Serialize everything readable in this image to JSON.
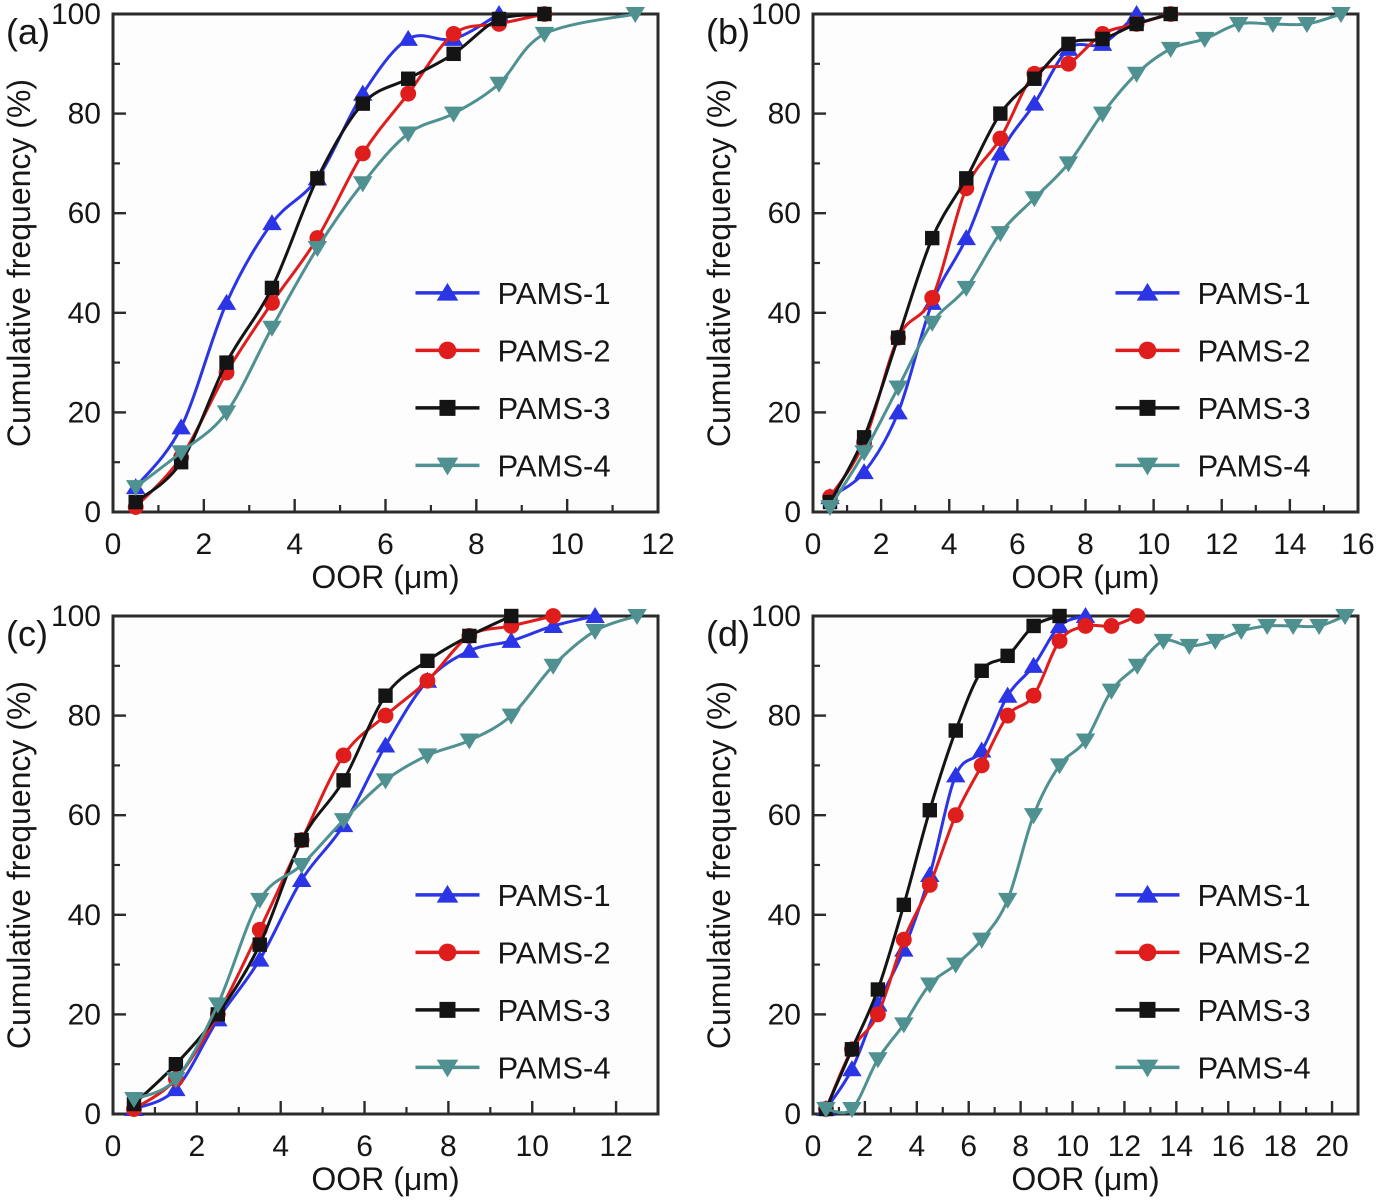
{
  "figure": {
    "kind": "4-panel cumulative distribution figure",
    "background": "#ffffff",
    "axis_color": "#2b2b2b",
    "text_color": "#161616"
  },
  "series_style": {
    "PAMS-1": {
      "color": "#2b35e6",
      "marker": "triangle-up"
    },
    "PAMS-2": {
      "color": "#e01d1d",
      "marker": "circle"
    },
    "PAMS-3": {
      "color": "#141414",
      "marker": "square"
    },
    "PAMS-4": {
      "color": "#4f9190",
      "marker": "triangle-down"
    }
  },
  "chart_data": [
    {
      "type": "line",
      "panel_label": "(a)",
      "xlabel": "OOR (μm)",
      "ylabel": "Cumulative frequency (%)",
      "xlim": [
        0,
        12
      ],
      "ylim": [
        0,
        100
      ],
      "xticks": [
        0,
        2,
        4,
        6,
        8,
        10,
        12
      ],
      "yticks": [
        0,
        20,
        40,
        60,
        80,
        100
      ],
      "grid": false,
      "legend_position": "inside-right-middle",
      "legend": [
        "PAMS-1",
        "PAMS-2",
        "PAMS-3",
        "PAMS-4"
      ],
      "series": [
        {
          "name": "PAMS-1",
          "color": "#2b35e6",
          "marker": "triangle-up",
          "points": [
            [
              0.5,
              5
            ],
            [
              1.5,
              17
            ],
            [
              2.5,
              42
            ],
            [
              3.5,
              58
            ],
            [
              4.5,
              67
            ],
            [
              5.5,
              84
            ],
            [
              6.5,
              95
            ],
            [
              7.5,
              95
            ],
            [
              8.5,
              100
            ]
          ]
        },
        {
          "name": "PAMS-2",
          "color": "#e01d1d",
          "marker": "circle",
          "points": [
            [
              0.5,
              1
            ],
            [
              1.5,
              11
            ],
            [
              2.5,
              28
            ],
            [
              3.5,
              42
            ],
            [
              4.5,
              55
            ],
            [
              5.5,
              72
            ],
            [
              6.5,
              84
            ],
            [
              7.5,
              96
            ],
            [
              8.5,
              98
            ],
            [
              9.5,
              100
            ]
          ]
        },
        {
          "name": "PAMS-3",
          "color": "#141414",
          "marker": "square",
          "points": [
            [
              0.5,
              2
            ],
            [
              1.5,
              10
            ],
            [
              2.5,
              30
            ],
            [
              3.5,
              45
            ],
            [
              4.5,
              67
            ],
            [
              5.5,
              82
            ],
            [
              6.5,
              87
            ],
            [
              7.5,
              92
            ],
            [
              8.5,
              99
            ],
            [
              9.5,
              100
            ]
          ]
        },
        {
          "name": "PAMS-4",
          "color": "#4f9190",
          "marker": "triangle-down",
          "points": [
            [
              0.5,
              5
            ],
            [
              1.5,
              12
            ],
            [
              2.5,
              20
            ],
            [
              3.5,
              37
            ],
            [
              4.5,
              53
            ],
            [
              5.5,
              66
            ],
            [
              6.5,
              76
            ],
            [
              7.5,
              80
            ],
            [
              8.5,
              86
            ],
            [
              9.5,
              96
            ],
            [
              11.5,
              100
            ]
          ]
        }
      ]
    },
    {
      "type": "line",
      "panel_label": "(b)",
      "xlabel": "OOR (μm)",
      "ylabel": "Cumulative frequency (%)",
      "xlim": [
        0,
        16
      ],
      "ylim": [
        0,
        100
      ],
      "xticks": [
        0,
        2,
        4,
        6,
        8,
        10,
        12,
        14,
        16
      ],
      "yticks": [
        0,
        20,
        40,
        60,
        80,
        100
      ],
      "grid": false,
      "legend_position": "inside-right-middle",
      "legend": [
        "PAMS-1",
        "PAMS-2",
        "PAMS-3",
        "PAMS-4"
      ],
      "series": [
        {
          "name": "PAMS-1",
          "color": "#2b35e6",
          "marker": "triangle-up",
          "points": [
            [
              0.5,
              3
            ],
            [
              1.5,
              8
            ],
            [
              2.5,
              20
            ],
            [
              3.5,
              42
            ],
            [
              4.5,
              55
            ],
            [
              5.5,
              72
            ],
            [
              6.5,
              82
            ],
            [
              7.5,
              93
            ],
            [
              8.5,
              94
            ],
            [
              9.5,
              100
            ]
          ]
        },
        {
          "name": "PAMS-2",
          "color": "#e01d1d",
          "marker": "circle",
          "points": [
            [
              0.5,
              3
            ],
            [
              1.5,
              14
            ],
            [
              2.5,
              35
            ],
            [
              3.5,
              43
            ],
            [
              4.5,
              65
            ],
            [
              5.5,
              75
            ],
            [
              6.5,
              88
            ],
            [
              7.5,
              90
            ],
            [
              8.5,
              96
            ],
            [
              9.5,
              98
            ],
            [
              10.5,
              100
            ]
          ]
        },
        {
          "name": "PAMS-3",
          "color": "#141414",
          "marker": "square",
          "points": [
            [
              0.5,
              2
            ],
            [
              1.5,
              15
            ],
            [
              2.5,
              35
            ],
            [
              3.5,
              55
            ],
            [
              4.5,
              67
            ],
            [
              5.5,
              80
            ],
            [
              6.5,
              87
            ],
            [
              7.5,
              94
            ],
            [
              8.5,
              95
            ],
            [
              9.5,
              98
            ],
            [
              10.5,
              100
            ]
          ]
        },
        {
          "name": "PAMS-4",
          "color": "#4f9190",
          "marker": "triangle-down",
          "points": [
            [
              0.5,
              1
            ],
            [
              1.5,
              12
            ],
            [
              2.5,
              25
            ],
            [
              3.5,
              38
            ],
            [
              4.5,
              45
            ],
            [
              5.5,
              56
            ],
            [
              6.5,
              63
            ],
            [
              7.5,
              70
            ],
            [
              8.5,
              80
            ],
            [
              9.5,
              88
            ],
            [
              10.5,
              93
            ],
            [
              11.5,
              95
            ],
            [
              12.5,
              98
            ],
            [
              13.5,
              98
            ],
            [
              14.5,
              98
            ],
            [
              15.5,
              100
            ]
          ]
        }
      ]
    },
    {
      "type": "line",
      "panel_label": "(c)",
      "xlabel": "OOR (μm)",
      "ylabel": "Cumulative frequency (%)",
      "xlim": [
        0,
        13
      ],
      "ylim": [
        0,
        100
      ],
      "xticks": [
        0,
        2,
        4,
        6,
        8,
        10,
        12
      ],
      "yticks": [
        0,
        20,
        40,
        60,
        80,
        100
      ],
      "grid": false,
      "legend_position": "inside-right-middle",
      "legend": [
        "PAMS-1",
        "PAMS-2",
        "PAMS-3",
        "PAMS-4"
      ],
      "series": [
        {
          "name": "PAMS-1",
          "color": "#2b35e6",
          "marker": "triangle-up",
          "points": [
            [
              0.5,
              1
            ],
            [
              1.5,
              5
            ],
            [
              2.5,
              19
            ],
            [
              3.5,
              31
            ],
            [
              4.5,
              47
            ],
            [
              5.5,
              58
            ],
            [
              6.5,
              74
            ],
            [
              7.5,
              87
            ],
            [
              8.5,
              93
            ],
            [
              9.5,
              95
            ],
            [
              10.5,
              98
            ],
            [
              11.5,
              100
            ]
          ]
        },
        {
          "name": "PAMS-2",
          "color": "#e01d1d",
          "marker": "circle",
          "points": [
            [
              0.5,
              1
            ],
            [
              1.5,
              7
            ],
            [
              2.5,
              20
            ],
            [
              3.5,
              37
            ],
            [
              4.5,
              55
            ],
            [
              5.5,
              72
            ],
            [
              6.5,
              80
            ],
            [
              7.5,
              87
            ],
            [
              8.5,
              96
            ],
            [
              9.5,
              98
            ],
            [
              10.5,
              100
            ]
          ]
        },
        {
          "name": "PAMS-3",
          "color": "#141414",
          "marker": "square",
          "points": [
            [
              0.5,
              2
            ],
            [
              1.5,
              10
            ],
            [
              2.5,
              20
            ],
            [
              3.5,
              34
            ],
            [
              4.5,
              55
            ],
            [
              5.5,
              67
            ],
            [
              6.5,
              84
            ],
            [
              7.5,
              91
            ],
            [
              8.5,
              96
            ],
            [
              9.5,
              100
            ]
          ]
        },
        {
          "name": "PAMS-4",
          "color": "#4f9190",
          "marker": "triangle-down",
          "points": [
            [
              0.5,
              3
            ],
            [
              1.5,
              7
            ],
            [
              2.5,
              22
            ],
            [
              3.5,
              43
            ],
            [
              4.5,
              50
            ],
            [
              5.5,
              59
            ],
            [
              6.5,
              67
            ],
            [
              7.5,
              72
            ],
            [
              8.5,
              75
            ],
            [
              9.5,
              80
            ],
            [
              10.5,
              90
            ],
            [
              11.5,
              97
            ],
            [
              12.5,
              100
            ]
          ]
        }
      ]
    },
    {
      "type": "line",
      "panel_label": "(d)",
      "xlabel": "OOR (μm)",
      "ylabel": "Cumulative frequency (%)",
      "xlim": [
        0,
        21
      ],
      "ylim": [
        0,
        100
      ],
      "xticks": [
        0,
        2,
        4,
        6,
        8,
        10,
        12,
        14,
        16,
        18,
        20
      ],
      "yticks": [
        0,
        20,
        40,
        60,
        80,
        100
      ],
      "grid": false,
      "legend_position": "inside-right-middle",
      "legend": [
        "PAMS-1",
        "PAMS-2",
        "PAMS-3",
        "PAMS-4"
      ],
      "series": [
        {
          "name": "PAMS-1",
          "color": "#2b35e6",
          "marker": "triangle-up",
          "points": [
            [
              0.5,
              1
            ],
            [
              1.5,
              9
            ],
            [
              2.5,
              22
            ],
            [
              3.5,
              33
            ],
            [
              4.5,
              48
            ],
            [
              5.5,
              68
            ],
            [
              6.5,
              73
            ],
            [
              7.5,
              84
            ],
            [
              8.5,
              90
            ],
            [
              9.5,
              98
            ],
            [
              10.5,
              100
            ]
          ]
        },
        {
          "name": "PAMS-2",
          "color": "#e01d1d",
          "marker": "circle",
          "points": [
            [
              0.5,
              1
            ],
            [
              1.5,
              13
            ],
            [
              2.5,
              20
            ],
            [
              3.5,
              35
            ],
            [
              4.5,
              46
            ],
            [
              5.5,
              60
            ],
            [
              6.5,
              70
            ],
            [
              7.5,
              80
            ],
            [
              8.5,
              84
            ],
            [
              9.5,
              95
            ],
            [
              10.5,
              98
            ],
            [
              11.5,
              98
            ],
            [
              12.5,
              100
            ]
          ]
        },
        {
          "name": "PAMS-3",
          "color": "#141414",
          "marker": "square",
          "points": [
            [
              0.5,
              1
            ],
            [
              1.5,
              13
            ],
            [
              2.5,
              25
            ],
            [
              3.5,
              42
            ],
            [
              4.5,
              61
            ],
            [
              5.5,
              77
            ],
            [
              6.5,
              89
            ],
            [
              7.5,
              92
            ],
            [
              8.5,
              98
            ],
            [
              9.5,
              100
            ]
          ]
        },
        {
          "name": "PAMS-4",
          "color": "#4f9190",
          "marker": "triangle-down",
          "points": [
            [
              0.5,
              1
            ],
            [
              1.5,
              1
            ],
            [
              2.5,
              11
            ],
            [
              3.5,
              18
            ],
            [
              4.5,
              26
            ],
            [
              5.5,
              30
            ],
            [
              6.5,
              35
            ],
            [
              7.5,
              43
            ],
            [
              8.5,
              60
            ],
            [
              9.5,
              70
            ],
            [
              10.5,
              75
            ],
            [
              11.5,
              85
            ],
            [
              12.5,
              90
            ],
            [
              13.5,
              95
            ],
            [
              14.5,
              94
            ],
            [
              15.5,
              95
            ],
            [
              16.5,
              97
            ],
            [
              17.5,
              98
            ],
            [
              18.5,
              98
            ],
            [
              19.5,
              98
            ],
            [
              20.5,
              100
            ]
          ]
        }
      ]
    }
  ]
}
